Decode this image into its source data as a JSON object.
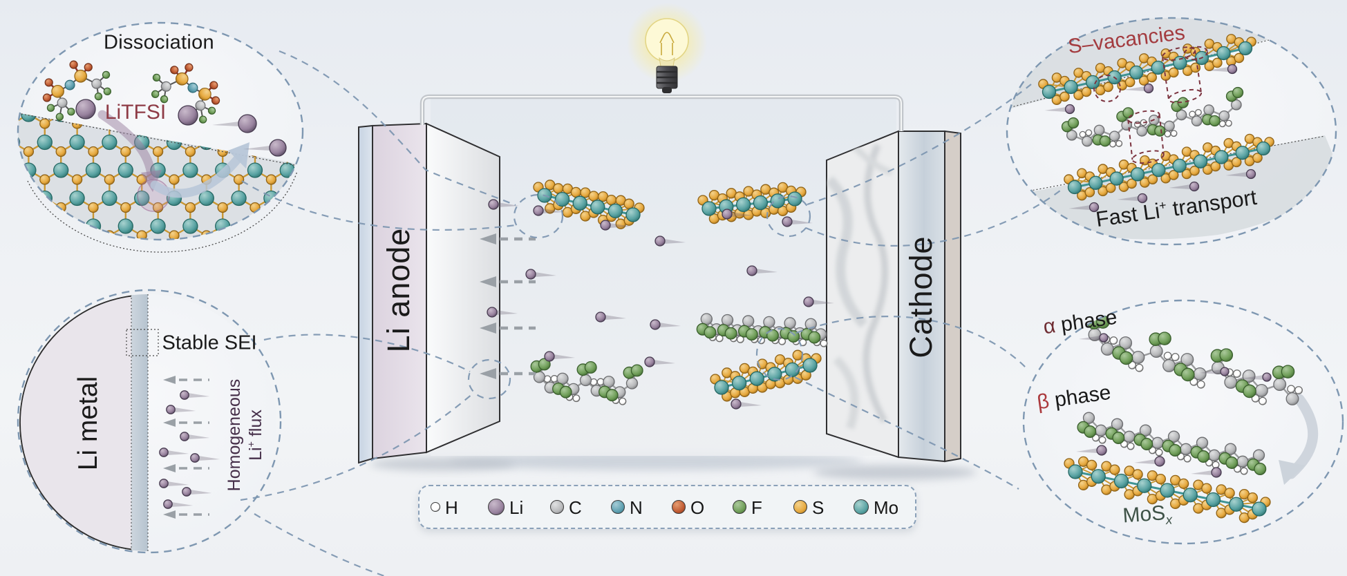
{
  "figure": {
    "description": "Lithium battery schematic with MoS2 cathode insets"
  },
  "bulb": {
    "name": "glowing-light-bulb"
  },
  "electrodes": {
    "anode_label": "Li anode",
    "cathode_label": "Cathode"
  },
  "insets": {
    "top_left": {
      "title": "Dissociation",
      "molecule": "LiTFSI"
    },
    "top_right": {
      "title": "S–vacancies",
      "caption_pre": "Fast Li",
      "caption_sup": "+",
      "caption_post": " transport"
    },
    "bottom_left": {
      "metal": "Li metal",
      "sei": "Stable SEI",
      "flux_line1": "Homogeneous",
      "flux2_pre": "Li",
      "flux_sup": "+",
      "flux2_post": " flux"
    },
    "bottom_right": {
      "alpha_symbol": "α",
      "alpha_word": " phase",
      "beta_symbol": "β",
      "beta_word": " phase",
      "mos_pre": "MoS",
      "mos_sub": "x"
    }
  },
  "legend": {
    "items": [
      {
        "symbol": "H",
        "r": 7
      },
      {
        "symbol": "Li",
        "r": 12
      },
      {
        "symbol": "C",
        "r": 10
      },
      {
        "symbol": "N",
        "r": 10
      },
      {
        "symbol": "O",
        "r": 10
      },
      {
        "symbol": "F",
        "r": 10
      },
      {
        "symbol": "S",
        "r": 10
      },
      {
        "symbol": "Mo",
        "r": 11
      }
    ]
  },
  "palette": {
    "atoms": {
      "H": {
        "base": "#ffffff",
        "hi": "#ffffff",
        "dk": "#6a6a6a"
      },
      "Li": {
        "base": "#97819d",
        "hi": "#c9bacb",
        "dk": "#463a4f"
      },
      "C": {
        "base": "#b7b8ba",
        "hi": "#e0e1e2",
        "dk": "#6c6d70"
      },
      "N": {
        "base": "#5d9fb0",
        "hi": "#a5ccd6",
        "dk": "#2f6b77"
      },
      "O": {
        "base": "#c05a32",
        "hi": "#e59d72",
        "dk": "#73311a"
      },
      "F": {
        "base": "#6f9e58",
        "hi": "#abc99c",
        "dk": "#3a5f2d"
      },
      "S": {
        "base": "#e6a83d",
        "hi": "#f4d28c",
        "dk": "#8f6216"
      },
      "Mo": {
        "base": "#58a2a2",
        "hi": "#a8d2cf",
        "dk": "#246763"
      }
    },
    "bonds": {
      "mo": "#3f9494",
      "s": "#c99733",
      "c": "#9a9b9d",
      "so": "#8c3129"
    },
    "accents": {
      "dash_blue": "#7e97b1",
      "maroon": "#8e3b46",
      "brick": "#a33b3f",
      "dark_red": "#7c3440",
      "alpha": "#6f2d33",
      "beta": "#ab3a3d",
      "mosx": "#3e5247",
      "flux_text": "#46304a",
      "arrow_gray": "#9aa0a6",
      "ion_streak": "#6b5f73"
    }
  }
}
